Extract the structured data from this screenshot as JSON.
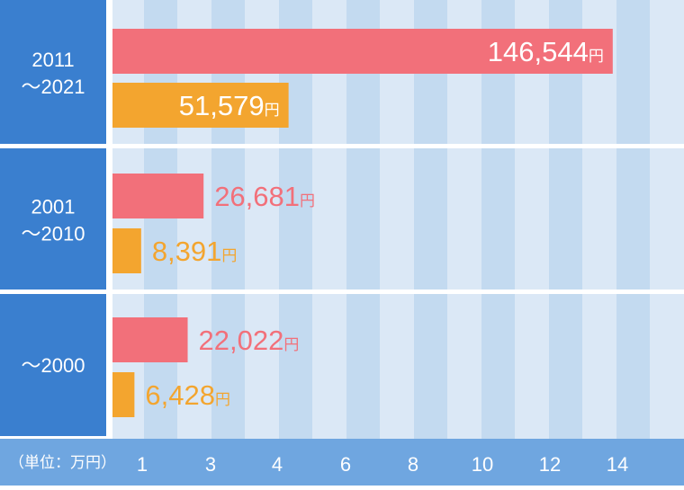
{
  "chart_data": {
    "type": "bar",
    "orientation": "horizontal",
    "unit_label": "（単位：万円）",
    "value_suffix": "円",
    "categories": [
      {
        "line1": "2011",
        "line2": "～2021"
      },
      {
        "line1": "2001",
        "line2": "～2010"
      },
      {
        "line1": "",
        "line2": "～2000"
      }
    ],
    "series": [
      {
        "color": "#f2707a",
        "values": [
          146544,
          26681,
          22022
        ],
        "labels": [
          "146,544",
          "26,681",
          "22,022"
        ]
      },
      {
        "color": "#f3a52f",
        "values": [
          51579,
          8391,
          6428
        ],
        "labels": [
          "51,579",
          "8,391",
          "6,428"
        ]
      }
    ],
    "x_ticks": [
      1,
      3,
      4,
      6,
      8,
      10,
      12,
      14
    ],
    "xlim": [
      0,
      151600
    ],
    "colors": {
      "category_panel": "#3a7fcf",
      "axis_bar": "#6fa6e0",
      "band_light": "#dbe8f6",
      "band_dark": "#c3daf0",
      "divider": "#ffffff",
      "label_inside": "#ffffff"
    }
  }
}
